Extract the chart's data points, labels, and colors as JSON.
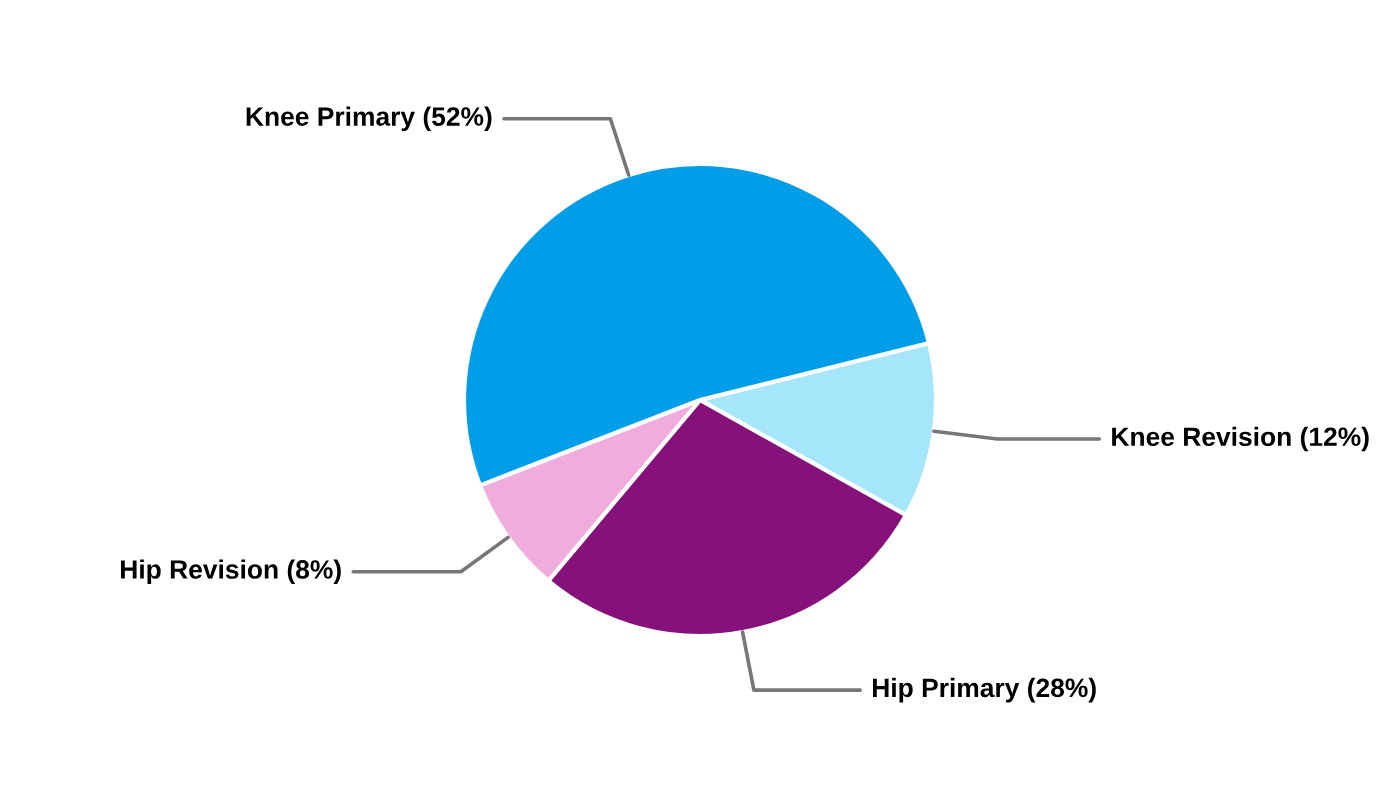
{
  "chart_data": {
    "type": "pie",
    "categories": [
      "Knee Revision",
      "Hip Primary",
      "Hip Revision",
      "Knee Primary"
    ],
    "values": [
      12,
      28,
      8,
      52
    ],
    "value_labels": [
      "(12%)",
      "(28%)",
      "(8%)",
      "(52%)"
    ],
    "colors": [
      "#a6e6fb",
      "#86117b",
      "#f0acdc",
      "#009ee9"
    ],
    "legend": false
  }
}
